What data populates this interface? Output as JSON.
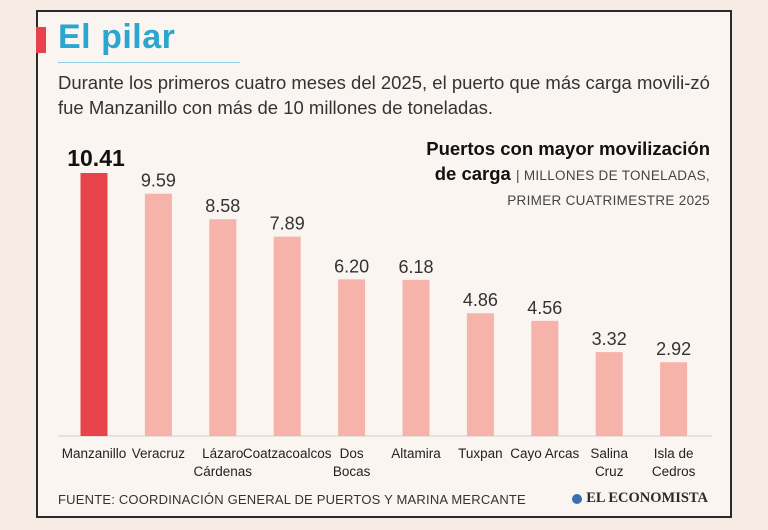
{
  "header": {
    "title": "El pilar",
    "subtitle": "Durante los primeros cuatro meses del 2025, el puerto que más carga movili-zó fue Manzanillo con más de 10 millones de toneladas."
  },
  "chart_heading": {
    "line1": "Puertos con mayor movilización",
    "line2_bold": "de carga",
    "line2_unit": "| MILLONES DE TONELADAS,",
    "line3_unit": "PRIMER CUATRIMESTRE 2025"
  },
  "footer": {
    "source": "FUENTE: COORDINACIÓN GENERAL DE PUERTOS Y MARINA MERCANTE",
    "brand": "EL ECONOMISTA"
  },
  "colors": {
    "highlight_bar": "#e8434a",
    "bar": "#f5b3aa",
    "title": "#2aa6cf"
  },
  "chart_data": {
    "type": "bar",
    "title": "Puertos con mayor movilización de carga",
    "ylabel": "MILLONES DE TONELADAS, PRIMER CUATRIMESTRE 2025",
    "categories": [
      [
        "Manzanillo"
      ],
      [
        "Veracruz"
      ],
      [
        "Lázaro",
        "Cárdenas"
      ],
      [
        "Coatzacoalcos"
      ],
      [
        "Dos",
        "Bocas"
      ],
      [
        "Altamira"
      ],
      [
        "Tuxpan"
      ],
      [
        "Cayo Arcas"
      ],
      [
        "Salina",
        "Cruz"
      ],
      [
        "Isla de",
        "Cedros"
      ]
    ],
    "values": [
      10.41,
      9.59,
      8.58,
      7.89,
      6.2,
      6.18,
      4.86,
      4.56,
      3.32,
      2.92
    ],
    "value_labels": [
      "10.41",
      "9.59",
      "8.58",
      "7.89",
      "6.20",
      "6.18",
      "4.86",
      "4.56",
      "3.32",
      "2.92"
    ],
    "highlight_index": 0,
    "ylim": [
      0,
      10.41
    ],
    "grid": false
  }
}
